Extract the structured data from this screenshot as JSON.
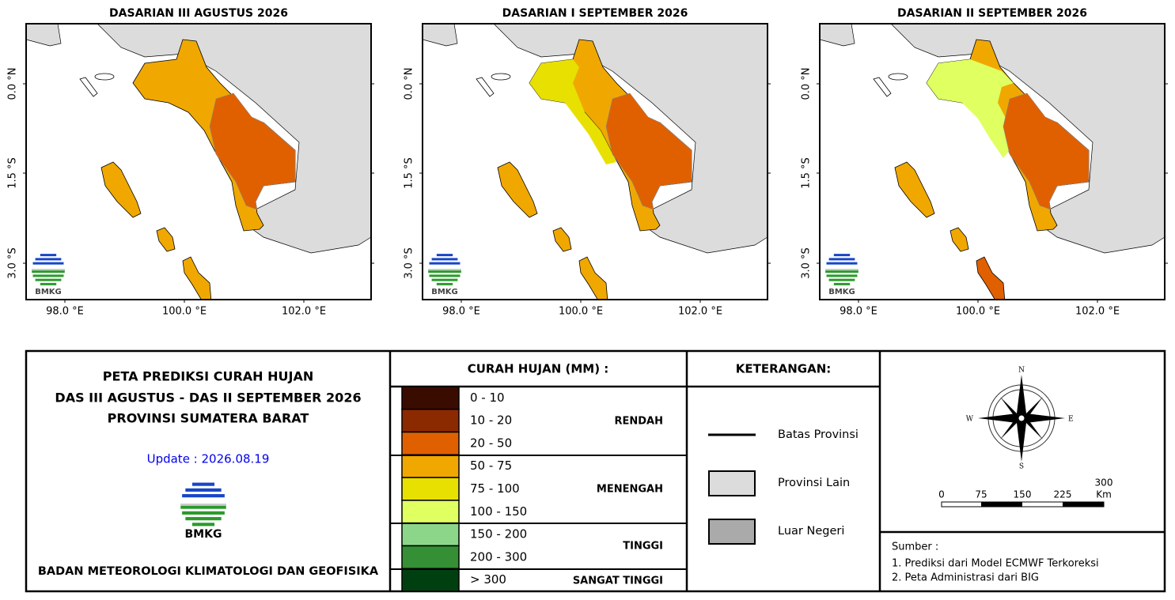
{
  "maps": [
    {
      "title": "DASARIAN III AGUSTUS 2026",
      "yticks": [
        "0.0 °N",
        "1.5 °S",
        "3.0 °S"
      ],
      "xticks": [
        "98.0 °E",
        "100.0 °E",
        "102.0 °E"
      ],
      "logo": "BMKG"
    },
    {
      "title": "DASARIAN I SEPTEMBER 2026",
      "yticks": [
        "0.0 °N",
        "1.5 °S",
        "3.0 °S"
      ],
      "xticks": [
        "98.0 °E",
        "100.0 °E",
        "102.0 °E"
      ],
      "logo": "BMKG"
    },
    {
      "title": "DASARIAN II SEPTEMBER 2026",
      "yticks": [
        "0.0 °N",
        "1.5 °S",
        "3.0 °S"
      ],
      "xticks": [
        "98.0 °E",
        "100.0 °E",
        "102.0 °E"
      ],
      "logo": "BMKG"
    }
  ],
  "info": {
    "title_lines": [
      "PETA PREDIKSI CURAH HUJAN",
      "DAS III AGUSTUS - DAS II SEPTEMBER 2026",
      "PROVINSI SUMATERA BARAT"
    ],
    "update": "Update : 2026.08.19",
    "logo": "BMKG",
    "agency": "BADAN METEOROLOGI KLIMATOLOGI DAN GEOFISIKA"
  },
  "legend": {
    "header": "CURAH HUJAN (MM) :",
    "classes": [
      {
        "range": "0 - 10",
        "color": "#3a0c00"
      },
      {
        "range": "10 - 20",
        "color": "#8b2a00"
      },
      {
        "range": "20 - 50",
        "color": "#e06000"
      },
      {
        "range": "50 - 75",
        "color": "#f0a800"
      },
      {
        "range": "75 - 100",
        "color": "#e8e000"
      },
      {
        "range": "100 - 150",
        "color": "#e0ff60"
      },
      {
        "range": "150 - 200",
        "color": "#8cd68a"
      },
      {
        "range": "200 - 300",
        "color": "#358f35"
      },
      {
        "range": "> 300",
        "color": "#004010"
      }
    ],
    "groups": [
      "RENDAH",
      "MENENGAH",
      "TINGGI",
      "SANGAT TINGGI"
    ]
  },
  "keterangan": {
    "header": "KETERANGAN:",
    "items": [
      "Batas Provinsi",
      "Provinsi Lain",
      "Luar Negeri"
    ]
  },
  "compass": {
    "n": "N",
    "e": "E",
    "s": "S",
    "w": "W"
  },
  "scale": {
    "labels": [
      "0",
      "75",
      "150",
      "225",
      "300"
    ],
    "unit": "Km"
  },
  "source": {
    "title": "Sumber :",
    "lines": [
      "1. Prediksi dari Model ECMWF Terkoreksi",
      "2. Peta Administrasi dari BIG"
    ]
  }
}
